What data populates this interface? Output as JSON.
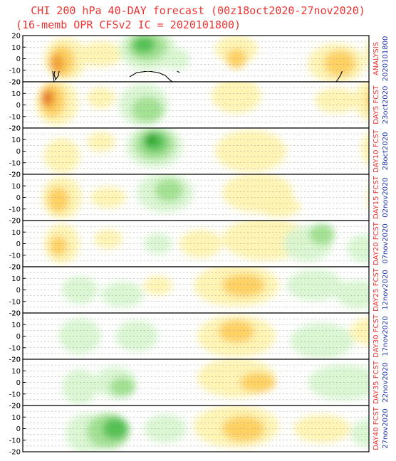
{
  "title": {
    "line1": "CHI 200 hPa 40-DAY forecast (00z18oct2020-27nov2020)",
    "line2": "(16-memb OPR CFSv2 IC = 2020101800)"
  },
  "y_ticks": [
    "20",
    "10",
    "0",
    "-10",
    "-20"
  ],
  "panels": [
    {
      "label": "ANALYSIS",
      "date": "2020101800"
    },
    {
      "label": "DAY5 FCST",
      "date": "23oct2020"
    },
    {
      "label": "DAY10 FCST",
      "date": "28oct2020"
    },
    {
      "label": "DAY15 FCST",
      "date": "02nov2020"
    },
    {
      "label": "DAY20 FCST",
      "date": "07nov2020"
    },
    {
      "label": "DAY25 FCST",
      "date": "12nov2020"
    },
    {
      "label": "DAY30 FCST",
      "date": "17nov2020"
    },
    {
      "label": "DAY35 FCST",
      "date": "22nov2020"
    },
    {
      "label": "DAY40 FCST",
      "date": "27nov2020"
    }
  ],
  "colors": {
    "title": "#ee3333",
    "panel_label": "#ee3333",
    "panel_date": "#2233aa",
    "positive_light": "#fff3b0",
    "positive_mid": "#ffd060",
    "positive_strong": "#f0a030",
    "positive_max": "#e05020",
    "negative_light": "#d8f5d0",
    "negative_mid": "#a0e090",
    "negative_strong": "#50c050",
    "negative_max": "#20a020"
  }
}
